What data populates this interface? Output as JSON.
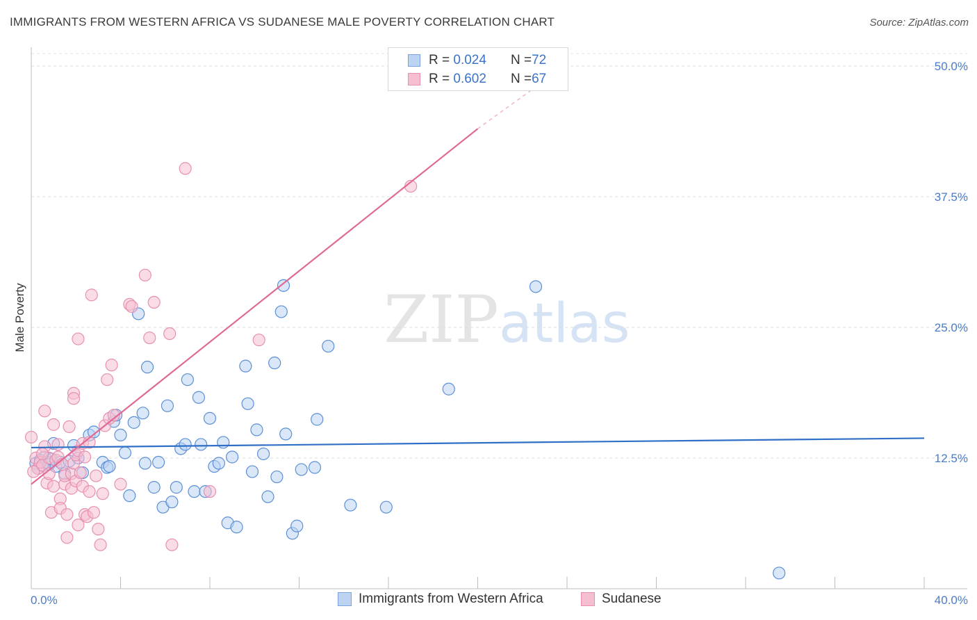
{
  "header": {
    "title": "IMMIGRANTS FROM WESTERN AFRICA VS SUDANESE MALE POVERTY CORRELATION CHART",
    "source": "Source: ZipAtlas.com"
  },
  "watermark": {
    "zip": "ZIP",
    "atlas": "atlas"
  },
  "legend": {
    "items": [
      {
        "r_label": "R = ",
        "r_value": "0.024",
        "n_label": "N = ",
        "n_value": "72"
      },
      {
        "r_label": "R = ",
        "r_value": "0.602",
        "n_label": "N = ",
        "n_value": "67"
      }
    ]
  },
  "chart_data": {
    "type": "scatter",
    "title": "IMMIGRANTS FROM WESTERN AFRICA VS SUDANESE MALE POVERTY CORRELATION CHART",
    "xlabel": "",
    "ylabel": "Male Poverty",
    "xlim": [
      0,
      40
    ],
    "ylim": [
      0,
      50
    ],
    "x_ticks": [
      "0.0%",
      "40.0%"
    ],
    "y_ticks": [
      {
        "value": 12.5,
        "label": "12.5%"
      },
      {
        "value": 25.0,
        "label": "25.0%"
      },
      {
        "value": 37.5,
        "label": "37.5%"
      },
      {
        "value": 50.0,
        "label": "50.0%"
      }
    ],
    "grid": "horizontal dashed",
    "colors": {
      "blue": "#3b78c9",
      "blue_fill": "#bcd3f2",
      "pink": "#e06a95",
      "pink_fill": "#f6bfd1"
    },
    "series": [
      {
        "name": "Immigrants from Western Africa",
        "color": "#3b78c9",
        "trend": {
          "x0": 0,
          "y0": 13.5,
          "x1": 40,
          "y1": 14.4
        },
        "points": [
          [
            0.2,
            12.0
          ],
          [
            0.3,
            11.5
          ],
          [
            0.4,
            12.3
          ],
          [
            0.5,
            11.8
          ],
          [
            0.6,
            12.6
          ],
          [
            0.7,
            12.1
          ],
          [
            0.8,
            11.9
          ],
          [
            0.9,
            12.4
          ],
          [
            1.0,
            13.9
          ],
          [
            1.1,
            11.7
          ],
          [
            1.3,
            12.1
          ],
          [
            1.5,
            11.0
          ],
          [
            1.7,
            12.2
          ],
          [
            1.9,
            13.7
          ],
          [
            2.1,
            12.5
          ],
          [
            2.3,
            11.1
          ],
          [
            2.6,
            14.7
          ],
          [
            2.8,
            15.0
          ],
          [
            3.2,
            12.1
          ],
          [
            3.4,
            11.6
          ],
          [
            3.5,
            11.7
          ],
          [
            3.7,
            16.0
          ],
          [
            3.8,
            16.6
          ],
          [
            4.0,
            14.7
          ],
          [
            4.2,
            13.0
          ],
          [
            4.4,
            8.9
          ],
          [
            4.6,
            15.9
          ],
          [
            4.8,
            26.3
          ],
          [
            5.0,
            16.8
          ],
          [
            5.1,
            12.0
          ],
          [
            5.2,
            21.2
          ],
          [
            5.5,
            9.7
          ],
          [
            5.7,
            12.1
          ],
          [
            5.9,
            7.8
          ],
          [
            6.1,
            17.5
          ],
          [
            6.3,
            8.3
          ],
          [
            6.5,
            9.7
          ],
          [
            6.7,
            13.4
          ],
          [
            6.9,
            13.8
          ],
          [
            7.0,
            20.0
          ],
          [
            7.3,
            9.3
          ],
          [
            7.5,
            18.3
          ],
          [
            7.6,
            13.8
          ],
          [
            7.8,
            9.3
          ],
          [
            8.0,
            16.3
          ],
          [
            8.2,
            11.7
          ],
          [
            8.4,
            12.0
          ],
          [
            8.6,
            14.0
          ],
          [
            8.8,
            6.3
          ],
          [
            9.2,
            5.9
          ],
          [
            9.0,
            12.6
          ],
          [
            9.6,
            21.3
          ],
          [
            9.7,
            17.7
          ],
          [
            9.9,
            11.2
          ],
          [
            10.1,
            15.2
          ],
          [
            10.4,
            12.9
          ],
          [
            10.6,
            8.8
          ],
          [
            10.9,
            21.6
          ],
          [
            11.0,
            10.7
          ],
          [
            11.2,
            26.5
          ],
          [
            11.3,
            29.0
          ],
          [
            11.4,
            14.8
          ],
          [
            11.7,
            5.3
          ],
          [
            11.9,
            6.0
          ],
          [
            12.1,
            11.4
          ],
          [
            12.7,
            11.6
          ],
          [
            12.8,
            16.2
          ],
          [
            13.3,
            23.2
          ],
          [
            14.3,
            8.0
          ],
          [
            15.9,
            7.8
          ],
          [
            18.7,
            19.1
          ],
          [
            22.6,
            28.9
          ],
          [
            33.5,
            1.5
          ]
        ]
      },
      {
        "name": "Sudanese",
        "color": "#e06a95",
        "trend": {
          "x0": 0,
          "y0": 10.0,
          "x1": 20.0,
          "y1": 44.0,
          "dash_to": {
            "x": 22.6,
            "y": 48.0
          }
        },
        "points": [
          [
            0.0,
            14.5
          ],
          [
            0.2,
            12.5
          ],
          [
            0.3,
            11.5
          ],
          [
            0.4,
            12.1
          ],
          [
            0.5,
            11.8
          ],
          [
            0.6,
            13.6
          ],
          [
            0.6,
            17.0
          ],
          [
            0.7,
            10.1
          ],
          [
            0.8,
            12.5
          ],
          [
            0.8,
            11.0
          ],
          [
            0.9,
            7.3
          ],
          [
            1.0,
            9.8
          ],
          [
            1.0,
            15.7
          ],
          [
            1.1,
            12.3
          ],
          [
            1.2,
            13.8
          ],
          [
            1.2,
            12.6
          ],
          [
            1.3,
            8.6
          ],
          [
            1.3,
            7.7
          ],
          [
            1.4,
            11.9
          ],
          [
            1.5,
            10.0
          ],
          [
            1.5,
            10.8
          ],
          [
            1.6,
            7.1
          ],
          [
            1.6,
            4.9
          ],
          [
            1.7,
            15.5
          ],
          [
            1.8,
            9.6
          ],
          [
            1.8,
            11.0
          ],
          [
            1.9,
            12.0
          ],
          [
            1.9,
            18.7
          ],
          [
            1.9,
            18.2
          ],
          [
            2.0,
            12.8
          ],
          [
            2.0,
            10.3
          ],
          [
            2.1,
            13.2
          ],
          [
            2.1,
            6.1
          ],
          [
            2.1,
            23.9
          ],
          [
            2.2,
            11.1
          ],
          [
            2.3,
            9.8
          ],
          [
            2.3,
            13.9
          ],
          [
            2.4,
            7.1
          ],
          [
            2.4,
            12.6
          ],
          [
            2.5,
            6.9
          ],
          [
            2.6,
            9.3
          ],
          [
            2.6,
            14.0
          ],
          [
            2.7,
            28.1
          ],
          [
            2.8,
            7.3
          ],
          [
            2.9,
            10.8
          ],
          [
            3.0,
            5.7
          ],
          [
            3.1,
            4.2
          ],
          [
            3.2,
            9.1
          ],
          [
            3.3,
            15.6
          ],
          [
            3.4,
            20.0
          ],
          [
            3.5,
            16.3
          ],
          [
            3.6,
            21.4
          ],
          [
            3.7,
            16.6
          ],
          [
            4.4,
            27.2
          ],
          [
            4.5,
            27.0
          ],
          [
            5.1,
            30.0
          ],
          [
            5.3,
            24.0
          ],
          [
            5.5,
            27.4
          ],
          [
            6.2,
            24.4
          ],
          [
            6.3,
            4.2
          ],
          [
            6.9,
            40.2
          ],
          [
            8.0,
            9.3
          ],
          [
            10.2,
            23.8
          ],
          [
            17.0,
            38.5
          ],
          [
            4.0,
            10.0
          ],
          [
            0.1,
            11.2
          ],
          [
            0.5,
            12.9
          ]
        ]
      }
    ]
  },
  "bottom_legend": {
    "items": [
      "Immigrants from Western Africa",
      "Sudanese"
    ]
  }
}
